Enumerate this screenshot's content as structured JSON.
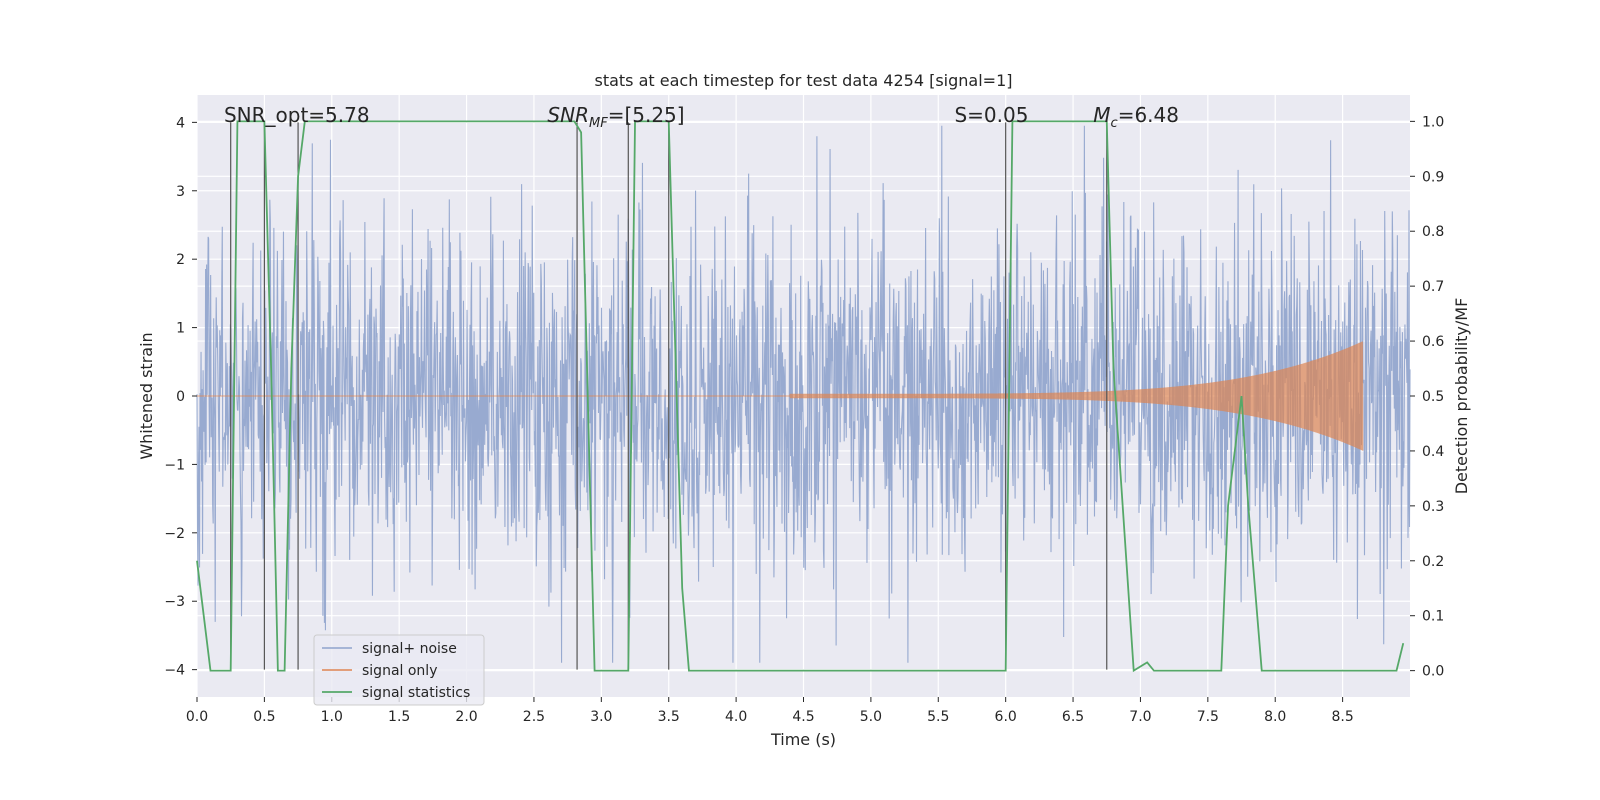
{
  "chart_data": {
    "type": "line",
    "title": "stats at each timestep for test data 4254 [signal=1]",
    "xlabel": "Time (s)",
    "ylabel": "Whitened strain",
    "y2label": "Detection probability/MF",
    "xlim": [
      0,
      9.0
    ],
    "ylim": [
      -4.4,
      4.4
    ],
    "y2lim": [
      -0.048,
      1.048
    ],
    "xticks": [
      0.0,
      0.5,
      1.0,
      1.5,
      2.0,
      2.5,
      3.0,
      3.5,
      4.0,
      4.5,
      5.0,
      5.5,
      6.0,
      6.5,
      7.0,
      7.5,
      8.0,
      8.5
    ],
    "yticks": [
      -4,
      -3,
      -2,
      -1,
      0,
      1,
      2,
      3,
      4
    ],
    "y2ticks": [
      0.0,
      0.1,
      0.2,
      0.3,
      0.4,
      0.5,
      0.6,
      0.7,
      0.8,
      0.9,
      1.0
    ],
    "grid": true,
    "legend_position": "lower-left",
    "annotations": [
      {
        "x_data": 0.2,
        "text": "SNR_opt=5.78"
      },
      {
        "x_data": 2.6,
        "text": "SNR_MF=[5.25]"
      },
      {
        "x_data": 5.62,
        "text": "S=0.05"
      },
      {
        "x_data": 6.65,
        "text": "M_c=6.48"
      }
    ],
    "vertical_lines_x": [
      0.25,
      0.5,
      0.75,
      2.82,
      3.2,
      3.5,
      6.0,
      6.75
    ],
    "series": [
      {
        "name": "signal+ noise",
        "color": "#8fa3cc",
        "noise_amplitude": 1.2,
        "x_range": [
          0,
          9.0
        ]
      },
      {
        "name": "signal only",
        "color": "#dd8452",
        "chirp_start_x": 4.4,
        "chirp_end_x": 8.65,
        "chirp_peak_amplitude": 0.8
      },
      {
        "name": "signal statistics",
        "color": "#55a868",
        "x": [
          0.0,
          0.05,
          0.1,
          0.25,
          0.3,
          0.5,
          0.55,
          0.6,
          0.65,
          0.7,
          0.75,
          0.8,
          0.85,
          2.8,
          2.85,
          2.95,
          3.2,
          3.25,
          3.5,
          3.6,
          3.65,
          3.8,
          6.0,
          6.05,
          6.75,
          6.8,
          6.95,
          7.05,
          7.1,
          7.4,
          7.5,
          7.6,
          7.65,
          7.75,
          7.8,
          7.9,
          8.9,
          8.95
        ],
        "values": [
          0.2,
          0.1,
          0.0,
          0.0,
          1.0,
          1.0,
          0.55,
          0.0,
          0.0,
          0.55,
          0.9,
          1.0,
          1.0,
          1.0,
          0.98,
          0.0,
          0.0,
          1.0,
          1.0,
          0.15,
          0.0,
          0.0,
          0.0,
          1.0,
          1.0,
          0.55,
          0.0,
          0.015,
          0.0,
          0.0,
          0.0,
          0.0,
          0.3,
          0.5,
          0.3,
          0.0,
          0.0,
          0.05
        ]
      }
    ]
  }
}
